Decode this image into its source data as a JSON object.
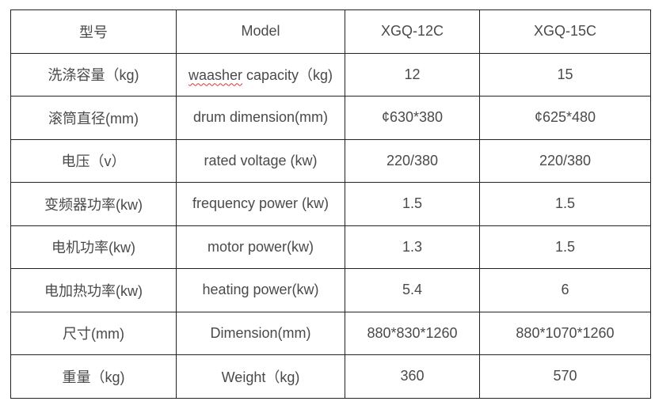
{
  "header": [
    "型号",
    "Model",
    "XGQ-12C",
    "XGQ-15C"
  ],
  "rows": [
    {
      "cn": "洗涤容量（kg)",
      "en_word": "waasher",
      "en_rest": " capacity（kg)",
      "a": "12",
      "b": "15"
    },
    {
      "cn": "滚筒直径(mm)",
      "en": "drum dimension(mm)",
      "a": "¢630*380",
      "b": "¢625*480"
    },
    {
      "cn": "电压（v）",
      "en": "rated voltage (kw)",
      "a": "220/380",
      "b": "220/380"
    },
    {
      "cn": "变频器功率(kw)",
      "en": "frequency power (kw)",
      "a": "1.5",
      "b": "1.5"
    },
    {
      "cn": "电机功率(kw)",
      "en": "motor power(kw)",
      "a": "1.3",
      "b": "1.5"
    },
    {
      "cn": "电加热功率(kw)",
      "en": "heating power(kw)",
      "a": "5.4",
      "b": "6"
    },
    {
      "cn": "尺寸(mm)",
      "en": "Dimension(mm)",
      "a": "880*830*1260",
      "b": "880*1070*1260"
    },
    {
      "cn": "重量（kg)",
      "en": "Weight（kg)",
      "a": "360",
      "b": "570"
    }
  ]
}
